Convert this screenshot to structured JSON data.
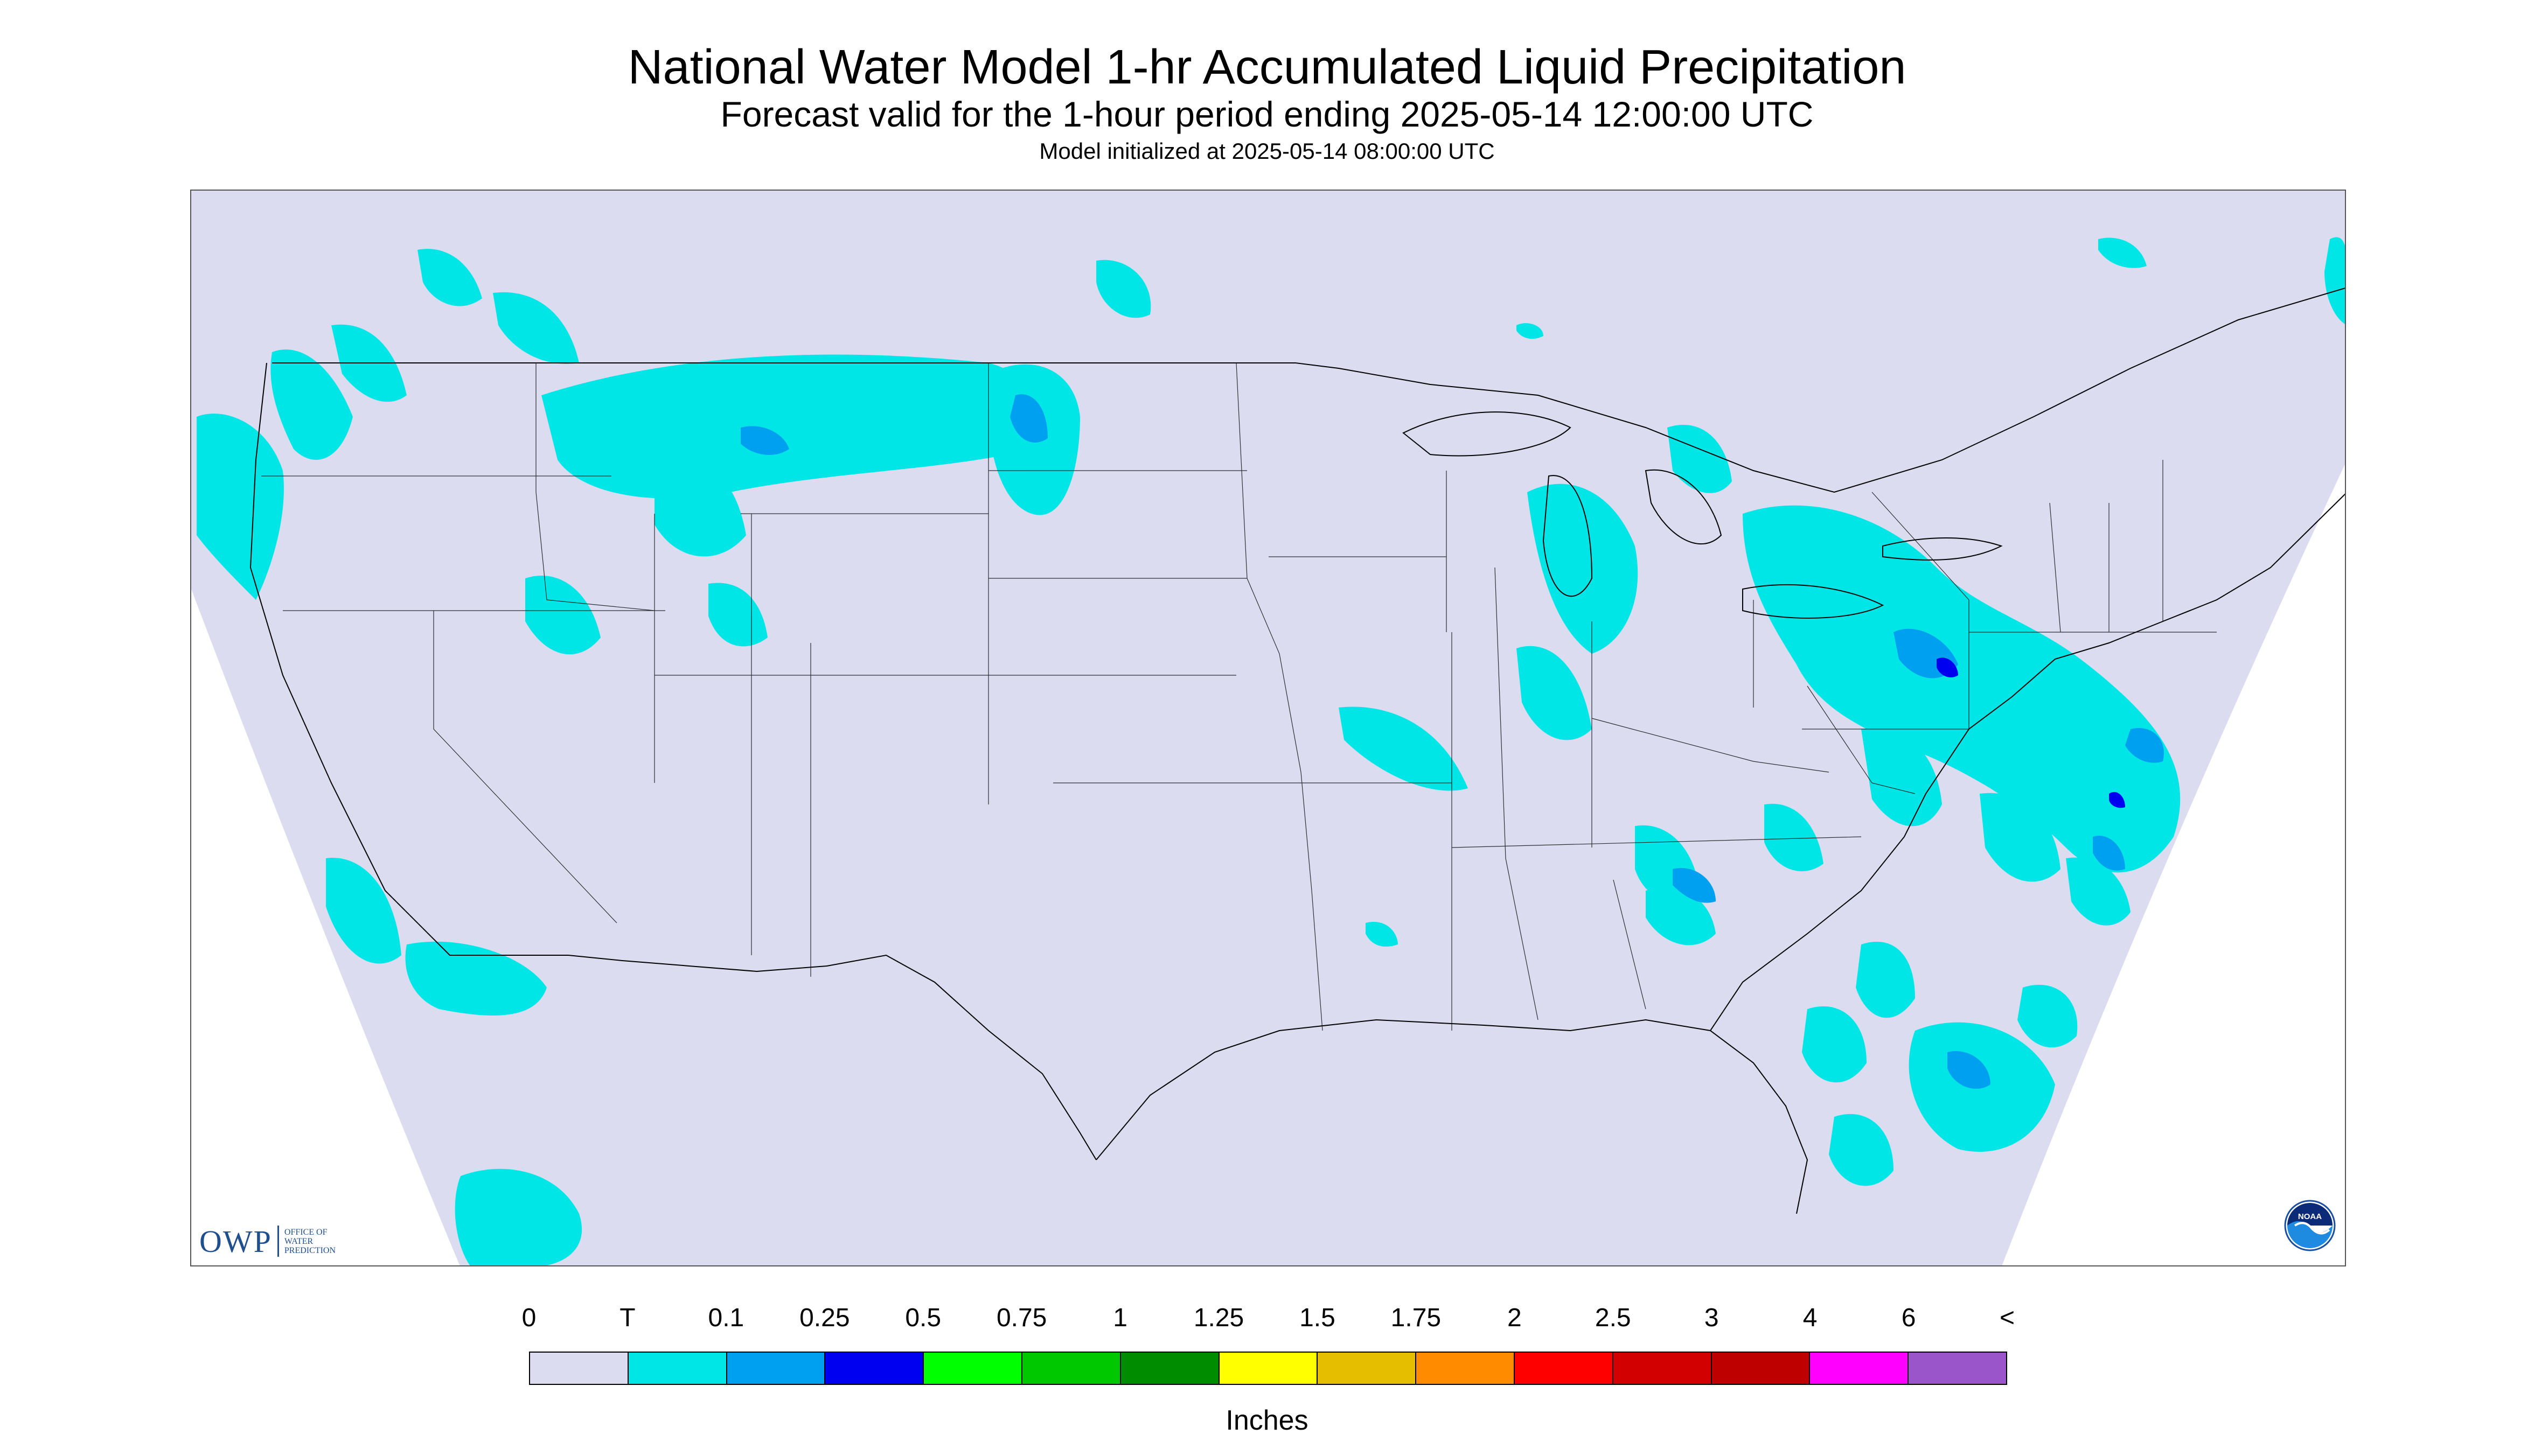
{
  "title": "National Water Model 1-hr Accumulated Liquid Precipitation",
  "subtitle": "Forecast valid for the 1-hour period ending 2025-05-14 12:00:00 UTC",
  "init": "Model initialized at 2025-05-14 08:00:00 UTC",
  "logo": {
    "owp_mark": "OWP",
    "owp_text": "OFFICE OF\nWATER\nPREDICTION",
    "noaa_text": "NOAA",
    "noaa_icon": "noaa-logo-icon"
  },
  "legend": {
    "labels": [
      "0",
      "T",
      "0.1",
      "0.25",
      "0.5",
      "0.75",
      "1",
      "1.25",
      "1.5",
      "1.75",
      "2",
      "2.5",
      "3",
      "4",
      "6",
      "<"
    ],
    "colors": [
      "#dcdcf0",
      "#00e6e6",
      "#00a0f0",
      "#0000f0",
      "#00ff00",
      "#00c800",
      "#008c00",
      "#ffff00",
      "#e6be00",
      "#ff8c00",
      "#ff0000",
      "#d20000",
      "#be0000",
      "#ff00ff",
      "#9955c9"
    ],
    "units": "Inches"
  },
  "map": {
    "background_color": "#dcdcf0",
    "outside_color": "#ffffff",
    "precip_trace_color": "#00e6e6",
    "precip_light_color": "#00a0f0",
    "precip_mod_color": "#0000f0",
    "border_color": "#000000"
  }
}
